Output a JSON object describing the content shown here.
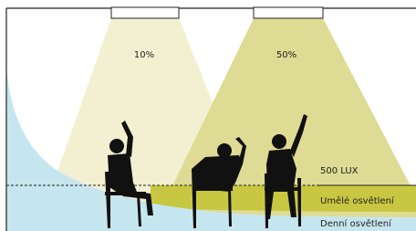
{
  "lamps": [
    {
      "label": "10%"
    },
    {
      "label": "50%"
    }
  ],
  "threshold": {
    "label": "500 LUX"
  },
  "zones": [
    {
      "label": "Umělé osvětlení"
    },
    {
      "label": "Denní osvětlení"
    }
  ]
}
